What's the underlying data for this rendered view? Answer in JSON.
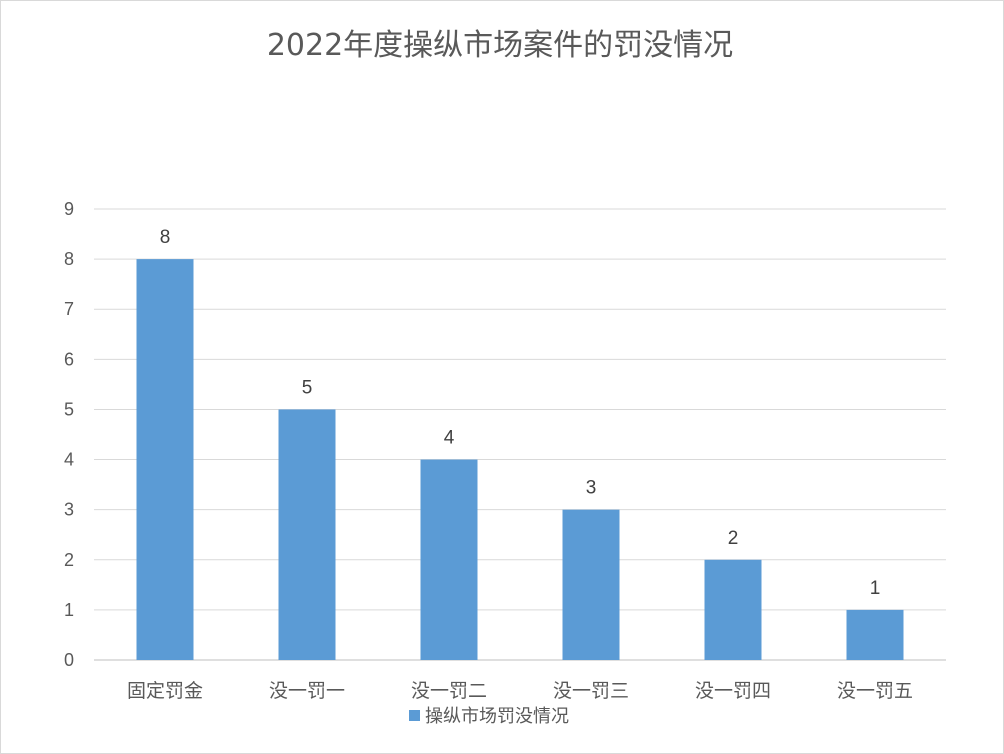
{
  "chart_data": {
    "type": "bar",
    "title": "2022年度操纵市场案件的罚没情况",
    "categories": [
      "固定罚金",
      "没一罚一",
      "没一罚二",
      "没一罚三",
      "没一罚四",
      "没一罚五"
    ],
    "series": [
      {
        "name": "操纵市场罚没情况",
        "values": [
          8,
          5,
          4,
          3,
          2,
          1
        ],
        "color": "#5b9bd5"
      }
    ],
    "ylim": [
      0,
      9
    ],
    "yticks": [
      0,
      1,
      2,
      3,
      4,
      5,
      6,
      7,
      8,
      9
    ],
    "grid": true,
    "data_labels": true,
    "legend_position": "bottom"
  }
}
